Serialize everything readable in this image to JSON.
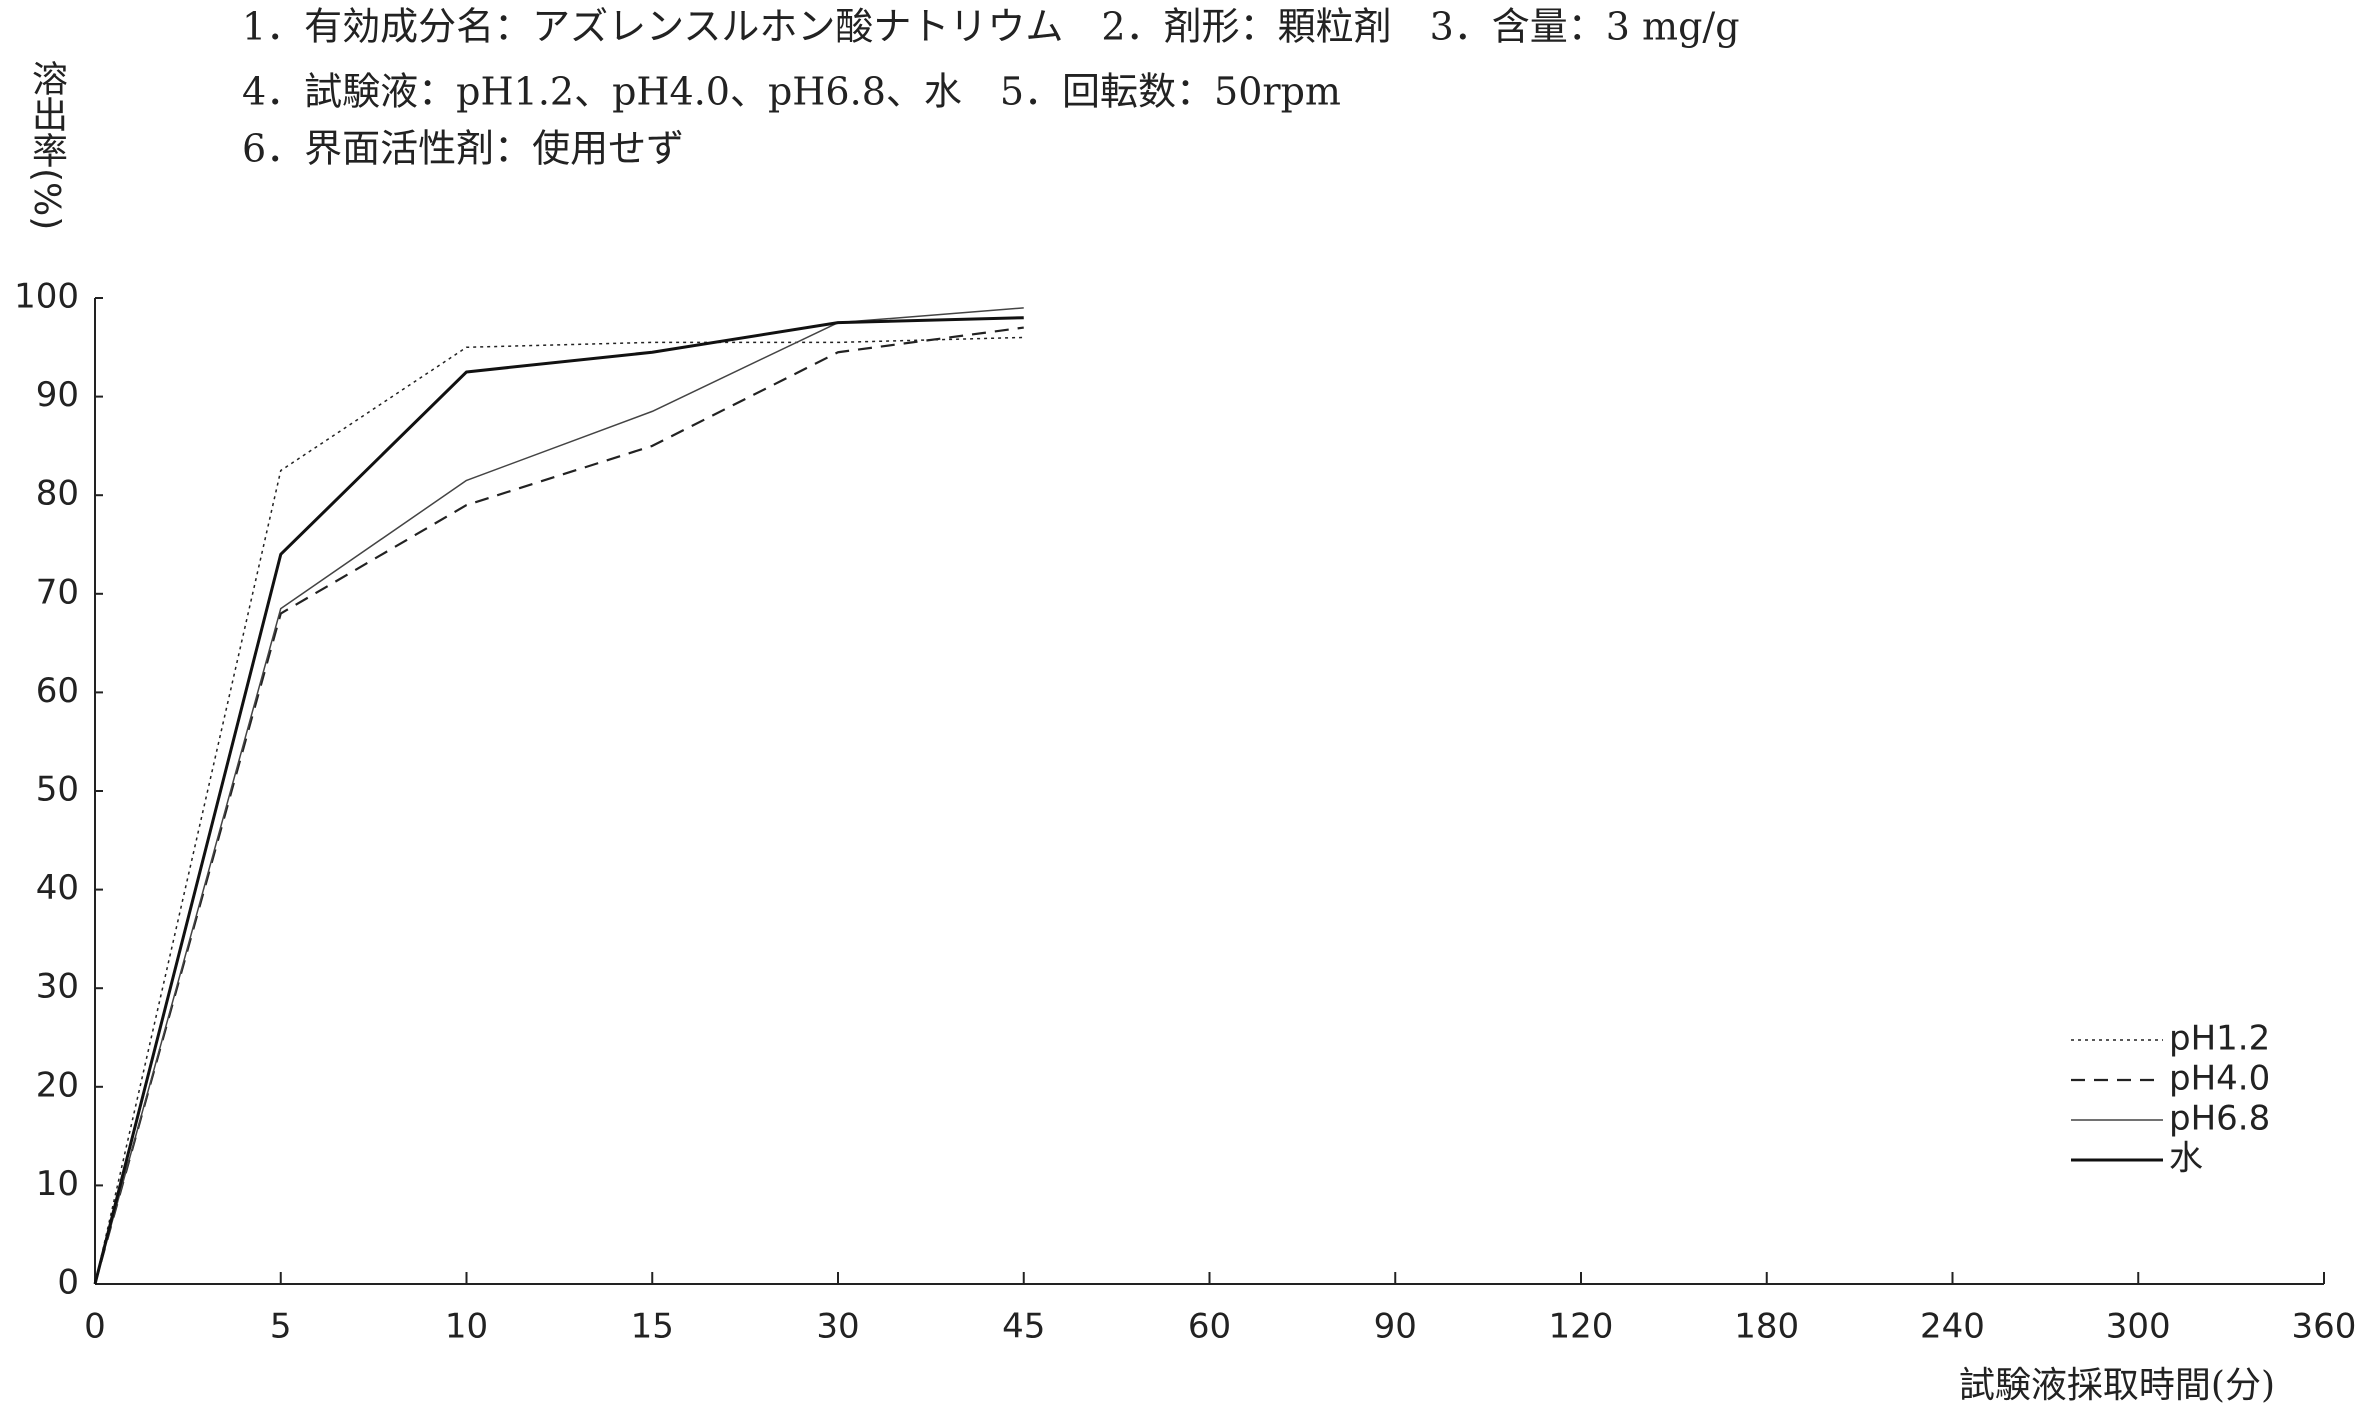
{
  "chart_data": {
    "type": "line",
    "notes": [
      "1．有効成分名：アズレンスルホン酸ナトリウム　2．剤形：顆粒剤　3．含量：3 mg/g",
      "4．試験液：pH1.2、pH4.0、pH6.8、水　5．回転数：50rpm",
      "6．界面活性剤：使用せず"
    ],
    "y_label": "溶出率(%)",
    "x_label": "試験液採取時間(分)",
    "categories": [
      "0",
      "5",
      "10",
      "15",
      "30",
      "45",
      "60",
      "90",
      "120",
      "180",
      "240",
      "300",
      "360"
    ],
    "series": [
      {
        "name": "pH1.2",
        "color": "#222222",
        "style": "dotted",
        "width": 1.5,
        "values": [
          0,
          82.5,
          95,
          95.5,
          95.5,
          96,
          null,
          null,
          null,
          null,
          null,
          null,
          null
        ]
      },
      {
        "name": "pH4.0",
        "color": "#222222",
        "style": "dashed",
        "width": 2.2,
        "values": [
          0,
          68,
          79,
          85,
          94.5,
          97,
          null,
          null,
          null,
          null,
          null,
          null,
          null
        ]
      },
      {
        "name": "pH6.8",
        "color": "#444444",
        "style": "solid",
        "width": 1.5,
        "values": [
          0,
          68.5,
          81.5,
          88.5,
          97.5,
          99,
          null,
          null,
          null,
          null,
          null,
          null,
          null
        ]
      },
      {
        "name": "水",
        "color": "#111111",
        "style": "solid",
        "width": 3,
        "values": [
          0,
          74,
          92.5,
          94.5,
          97.5,
          98,
          null,
          null,
          null,
          null,
          null,
          null,
          null
        ]
      }
    ],
    "ylim": [
      0,
      100
    ],
    "yticks": [
      0,
      10,
      20,
      30,
      40,
      50,
      60,
      70,
      80,
      90,
      100
    ],
    "grid": false,
    "legend": "lower right"
  }
}
